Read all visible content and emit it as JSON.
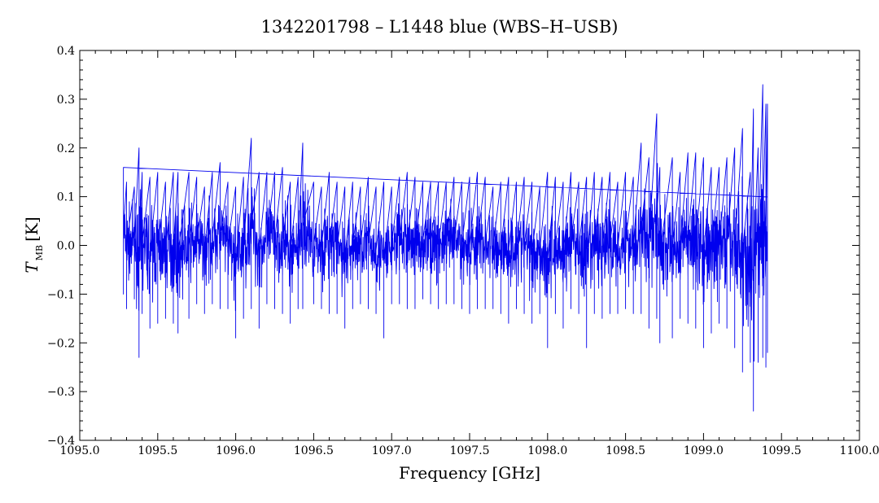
{
  "chart_data": {
    "type": "line",
    "title": "1342201798 – L1448 blue (WBS–H–USB)",
    "xlabel": "Frequency [GHz]",
    "ylabel": {
      "symbol": "T",
      "subscript": "MB",
      "unit": "[K]"
    },
    "xlim": [
      1095.0,
      1100.0
    ],
    "ylim": [
      -0.4,
      0.4
    ],
    "x_ticks": [
      "1095.0",
      "1095.5",
      "1096.0",
      "1096.5",
      "1097.0",
      "1097.5",
      "1098.0",
      "1098.5",
      "1099.0",
      "1099.5",
      "1100.0"
    ],
    "y_ticks": [
      "0.4",
      "0.3",
      "0.2",
      "0.1",
      "0.0",
      "−0.1",
      "−0.2",
      "−0.3",
      "−0.4"
    ],
    "grid": false,
    "legend": "none",
    "series": [
      {
        "color": "#0000ee",
        "x_range": [
          1095.28,
          1099.41
        ],
        "x": [
          1095.28,
          1095.3,
          1095.35,
          1095.38,
          1095.4,
          1095.45,
          1095.5,
          1095.55,
          1095.6,
          1095.63,
          1095.7,
          1095.75,
          1095.8,
          1095.85,
          1095.9,
          1095.95,
          1096.0,
          1096.05,
          1096.1,
          1096.15,
          1096.2,
          1096.25,
          1096.3,
          1096.35,
          1096.4,
          1096.43,
          1096.5,
          1096.55,
          1096.6,
          1096.65,
          1096.7,
          1096.75,
          1096.8,
          1096.85,
          1096.9,
          1096.95,
          1097.0,
          1097.05,
          1097.1,
          1097.15,
          1097.2,
          1097.25,
          1097.3,
          1097.35,
          1097.4,
          1097.45,
          1097.5,
          1097.55,
          1097.6,
          1097.65,
          1097.7,
          1097.75,
          1097.8,
          1097.85,
          1097.9,
          1097.95,
          1098.0,
          1098.05,
          1098.1,
          1098.15,
          1098.2,
          1098.25,
          1098.3,
          1098.35,
          1098.4,
          1098.45,
          1098.5,
          1098.55,
          1098.6,
          1098.65,
          1098.7,
          1098.72,
          1098.8,
          1098.85,
          1098.9,
          1098.95,
          1099.0,
          1099.05,
          1099.1,
          1099.15,
          1099.2,
          1099.25,
          1099.3,
          1099.32,
          1099.35,
          1099.38,
          1099.4,
          1099.41
        ],
        "y_max": [
          0.16,
          0.13,
          0.12,
          0.2,
          0.15,
          0.14,
          0.15,
          0.13,
          0.15,
          0.15,
          0.15,
          0.14,
          0.12,
          0.15,
          0.17,
          0.13,
          0.12,
          0.14,
          0.22,
          0.15,
          0.15,
          0.15,
          0.16,
          0.13,
          0.14,
          0.21,
          0.13,
          0.12,
          0.15,
          0.13,
          0.12,
          0.13,
          0.12,
          0.14,
          0.12,
          0.13,
          0.12,
          0.14,
          0.15,
          0.14,
          0.13,
          0.13,
          0.13,
          0.13,
          0.14,
          0.13,
          0.14,
          0.15,
          0.14,
          0.12,
          0.13,
          0.14,
          0.13,
          0.14,
          0.13,
          0.12,
          0.15,
          0.14,
          0.13,
          0.15,
          0.13,
          0.14,
          0.15,
          0.14,
          0.15,
          0.13,
          0.15,
          0.14,
          0.21,
          0.18,
          0.27,
          0.16,
          0.18,
          0.15,
          0.19,
          0.19,
          0.18,
          0.16,
          0.16,
          0.18,
          0.2,
          0.24,
          0.15,
          0.28,
          0.2,
          0.33,
          0.29,
          0.29
        ],
        "y_min": [
          -0.1,
          -0.13,
          -0.11,
          -0.23,
          -0.14,
          -0.17,
          -0.16,
          -0.15,
          -0.16,
          -0.18,
          -0.15,
          -0.12,
          -0.14,
          -0.12,
          -0.13,
          -0.13,
          -0.19,
          -0.15,
          -0.13,
          -0.17,
          -0.12,
          -0.13,
          -0.14,
          -0.16,
          -0.13,
          -0.13,
          -0.12,
          -0.13,
          -0.14,
          -0.14,
          -0.17,
          -0.13,
          -0.12,
          -0.13,
          -0.14,
          -0.19,
          -0.12,
          -0.12,
          -0.13,
          -0.13,
          -0.11,
          -0.12,
          -0.13,
          -0.12,
          -0.12,
          -0.13,
          -0.14,
          -0.13,
          -0.13,
          -0.13,
          -0.14,
          -0.16,
          -0.13,
          -0.14,
          -0.16,
          -0.14,
          -0.21,
          -0.14,
          -0.17,
          -0.13,
          -0.14,
          -0.21,
          -0.14,
          -0.15,
          -0.14,
          -0.14,
          -0.13,
          -0.14,
          -0.14,
          -0.17,
          -0.15,
          -0.2,
          -0.19,
          -0.15,
          -0.16,
          -0.17,
          -0.21,
          -0.18,
          -0.16,
          -0.17,
          -0.21,
          -0.26,
          -0.24,
          -0.34,
          -0.24,
          -0.23,
          -0.25,
          -0.22
        ]
      }
    ]
  }
}
